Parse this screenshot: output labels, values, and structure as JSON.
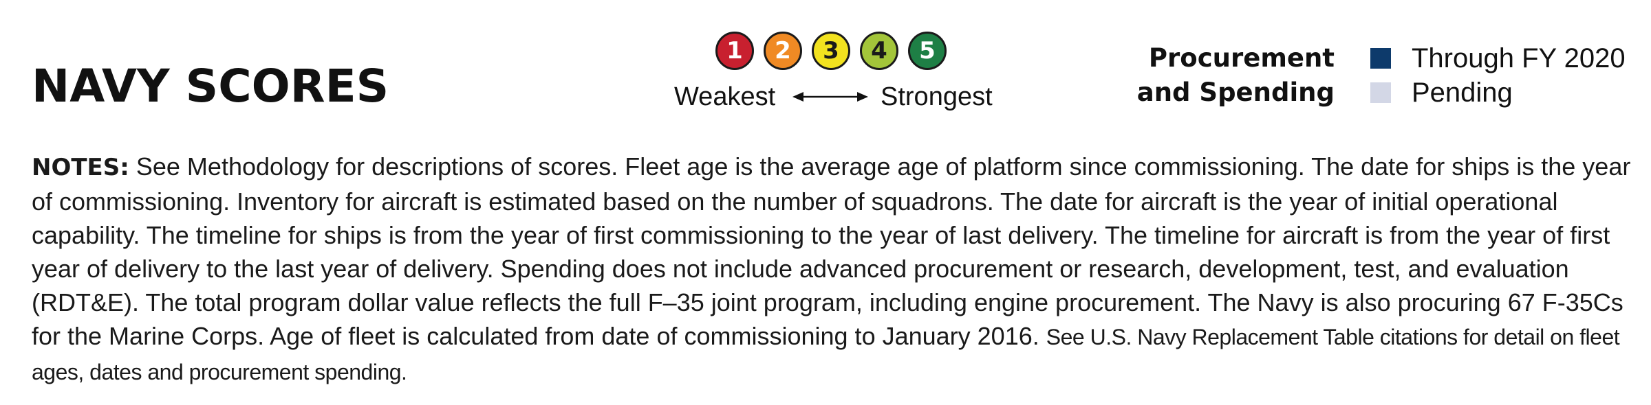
{
  "title": "NAVY SCORES",
  "score_scale": {
    "scores": [
      {
        "label": "1",
        "color": "#c8202f"
      },
      {
        "label": "2",
        "color": "#f08a24"
      },
      {
        "label": "3",
        "color": "#f2e21f"
      },
      {
        "label": "4",
        "color": "#a3c53a"
      },
      {
        "label": "5",
        "color": "#1e7f45"
      }
    ],
    "low_label": "Weakest",
    "high_label": "Strongest"
  },
  "spending_legend": {
    "title_line1": "Procurement",
    "title_line2": "and Spending",
    "items": [
      {
        "label": "Through FY 2020",
        "color": "#0d3a6b"
      },
      {
        "label": "Pending",
        "color": "#d3d7e6"
      }
    ]
  },
  "notes": {
    "label": "NOTES:",
    "text": " See Methodology for descriptions of scores. Fleet age is the average age of platform since commissioning. The date for ships is the year of commissioning. Inventory for aircraft is estimated based on the number of squadrons. The date for aircraft is the year of initial operational capability. The timeline for ships is from the year of first commissioning to the year of last delivery. The timeline for aircraft is from the year of first year of delivery to the last year of delivery. Spending does not include advanced procurement or research, development, test, and evaluation (RDT&E). The total program dollar value reflects the full F–35 joint program, including engine procurement. The Navy is also procuring 67 F-35Cs for the Marine Corps. Age of fleet is calculated from date of commissioning to January 2016. ",
    "citation": " See U.S. Navy Replacement Table citations for detail on fleet ages, dates and procurement spending."
  }
}
